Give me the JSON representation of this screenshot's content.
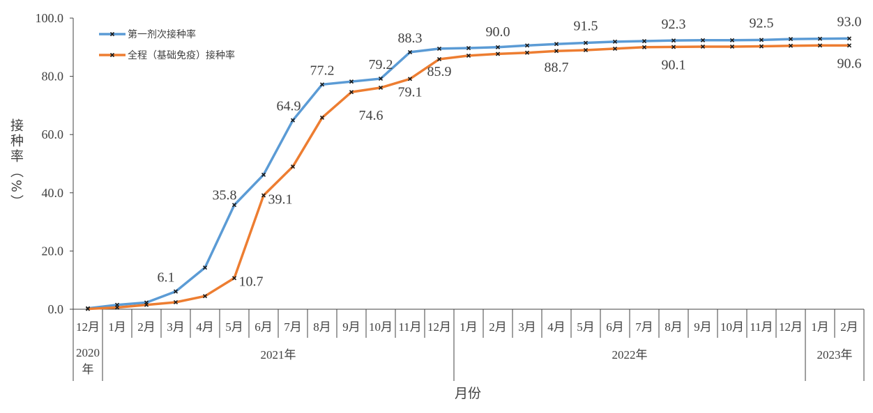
{
  "chart_data": {
    "type": "line",
    "title": "",
    "xlabel": "月份",
    "ylabel": "接种率（%）",
    "ylim": [
      0,
      100
    ],
    "y_ticks": [
      "0.0",
      "20.0",
      "40.0",
      "60.0",
      "80.0",
      "100.0"
    ],
    "grid": false,
    "legend_position": "top-left",
    "categories": [
      "12月",
      "1月",
      "2月",
      "3月",
      "4月",
      "5月",
      "6月",
      "7月",
      "8月",
      "9月",
      "10月",
      "11月",
      "12月",
      "1月",
      "2月",
      "3月",
      "4月",
      "5月",
      "6月",
      "7月",
      "8月",
      "9月",
      "10月",
      "11月",
      "12月",
      "1月",
      "2月"
    ],
    "groups": [
      {
        "label": "2020年",
        "count": 1
      },
      {
        "label": "2021年",
        "count": 12
      },
      {
        "label": "2022年",
        "count": 12
      },
      {
        "label": "2023年",
        "count": 2
      }
    ],
    "series": [
      {
        "name": "第一剂次接种率",
        "color": "#5B9BD5",
        "values": [
          0.3,
          1.5,
          2.3,
          6.1,
          14.3,
          35.8,
          46.2,
          64.9,
          77.2,
          78.2,
          79.2,
          88.3,
          89.5,
          89.7,
          90.0,
          90.6,
          91.1,
          91.5,
          91.9,
          92.1,
          92.3,
          92.4,
          92.4,
          92.5,
          92.8,
          92.9,
          93.0
        ],
        "labeled_indices": [
          3,
          5,
          7,
          8,
          10,
          11,
          14,
          17,
          20,
          23,
          26
        ]
      },
      {
        "name": "全程（基础免疫）接种率",
        "color": "#ED7D31",
        "values": [
          0.1,
          0.6,
          1.5,
          2.4,
          4.5,
          10.7,
          39.1,
          49.0,
          65.8,
          74.6,
          76.1,
          79.1,
          85.9,
          87.1,
          87.7,
          88.1,
          88.7,
          89.0,
          89.5,
          90.0,
          90.1,
          90.2,
          90.2,
          90.3,
          90.5,
          90.6,
          90.6
        ],
        "labeled_indices": [
          5,
          6,
          9,
          11,
          12,
          16,
          20,
          26
        ]
      }
    ]
  }
}
